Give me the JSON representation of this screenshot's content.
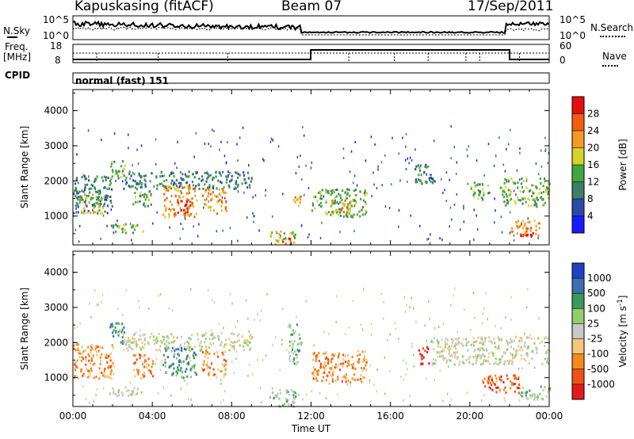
{
  "header": {
    "station": "Kapuskasing (fitACF)",
    "beam": "Beam 07",
    "date": "17/Sep/2011"
  },
  "nsky": {
    "label": "N.Sky",
    "tick_top": "10^5",
    "tick_bottom": "10^0",
    "right_label": "N.Search",
    "right_tick_top": "10^5",
    "right_tick_bottom": "10^0"
  },
  "freq": {
    "label_line1": "Freq.",
    "label_line2": "[MHz]",
    "tick_top": "18",
    "tick_bottom": "8",
    "right_label": "Nave",
    "right_tick_top": "60",
    "right_tick_bottom": "0"
  },
  "cpid": {
    "label": "CPID",
    "text": "normal (fast) 151"
  },
  "colors": {
    "power_scale": [
      "#1a1aff",
      "#2a4aa8",
      "#3c7e66",
      "#3fa83f",
      "#d6d22a",
      "#f59a22",
      "#f25d0e",
      "#e60f0f"
    ],
    "velocity_scale": [
      "#e61919",
      "#ee5018",
      "#f58a1c",
      "#f4c87a",
      "#c8c8c8",
      "#8fd06a",
      "#3b9a5a",
      "#3d6fb2",
      "#2040c8"
    ]
  },
  "chart_data": [
    {
      "type": "heatmap",
      "name": "power",
      "xlabel": "",
      "ylabel": "Slant Range [km]",
      "xlim": [
        0,
        24
      ],
      "ylim": [
        180,
        4600
      ],
      "yticks": [
        "1000",
        "2000",
        "3000",
        "4000"
      ],
      "colorbar_label": "Power [dB]",
      "colorbar_ticks": [
        "4",
        "8",
        "12",
        "16",
        "20",
        "24",
        "28"
      ],
      "regions": [
        {
          "t0": 0.0,
          "t1": 2.0,
          "r0": 1100,
          "r1": 2200,
          "level": 2
        },
        {
          "t0": 0.3,
          "t1": 1.5,
          "r0": 1100,
          "r1": 1700,
          "level": 4
        },
        {
          "t0": 1.8,
          "t1": 2.6,
          "r0": 2100,
          "r1": 2600,
          "level": 3
        },
        {
          "t0": 1.8,
          "t1": 3.5,
          "r0": 550,
          "r1": 800,
          "level": 3
        },
        {
          "t0": 2.5,
          "t1": 9.0,
          "r0": 1800,
          "r1": 2300,
          "level": 2
        },
        {
          "t0": 3.0,
          "t1": 4.0,
          "r0": 1300,
          "r1": 1800,
          "level": 3
        },
        {
          "t0": 4.5,
          "t1": 6.2,
          "r0": 1000,
          "r1": 1900,
          "level": 5
        },
        {
          "t0": 5.2,
          "t1": 5.9,
          "r0": 1100,
          "r1": 1500,
          "level": 7
        },
        {
          "t0": 6.5,
          "t1": 7.7,
          "r0": 1100,
          "r1": 1800,
          "level": 5
        },
        {
          "t0": 9.8,
          "t1": 11.2,
          "r0": 200,
          "r1": 600,
          "level": 4
        },
        {
          "t0": 10.5,
          "t1": 11.0,
          "r0": 200,
          "r1": 400,
          "level": 7
        },
        {
          "t0": 11.0,
          "t1": 11.6,
          "r0": 1300,
          "r1": 1600,
          "level": 5
        },
        {
          "t0": 12.0,
          "t1": 14.8,
          "r0": 1000,
          "r1": 1800,
          "level": 3
        },
        {
          "t0": 13.0,
          "t1": 14.0,
          "r0": 1100,
          "r1": 1500,
          "level": 5
        },
        {
          "t0": 17.2,
          "t1": 18.2,
          "r0": 1900,
          "r1": 2500,
          "level": 2
        },
        {
          "t0": 20.0,
          "t1": 21.0,
          "r0": 1500,
          "r1": 2000,
          "level": 3
        },
        {
          "t0": 21.5,
          "t1": 24.0,
          "r0": 1300,
          "r1": 2100,
          "level": 3
        },
        {
          "t0": 22.0,
          "t1": 23.5,
          "r0": 450,
          "r1": 900,
          "level": 5
        },
        {
          "t0": 22.5,
          "t1": 23.2,
          "r0": 450,
          "r1": 700,
          "level": 7
        }
      ]
    },
    {
      "type": "heatmap",
      "name": "velocity",
      "xlabel": "Time UT",
      "ylabel": "Slant Range [km]",
      "xlim": [
        0,
        24
      ],
      "ylim": [
        180,
        4600
      ],
      "yticks": [
        "1000",
        "2000",
        "3000",
        "4000"
      ],
      "xticks": [
        "00:00",
        "04:00",
        "08:00",
        "12:00",
        "16:00",
        "20:00",
        "00:00"
      ],
      "colorbar_label": "Velocity [m s^-1]",
      "colorbar_ticks": [
        "-1000",
        "-500",
        "-100",
        "-25",
        "25",
        "100",
        "500",
        "1000"
      ],
      "regions": [
        {
          "t0": 0.0,
          "t1": 2.0,
          "r0": 1000,
          "r1": 2000,
          "level": 2
        },
        {
          "t0": 1.8,
          "t1": 2.6,
          "r0": 2000,
          "r1": 2600,
          "level": 6
        },
        {
          "t0": 1.8,
          "t1": 3.5,
          "r0": 500,
          "r1": 800,
          "level": 4
        },
        {
          "t0": 2.5,
          "t1": 9.0,
          "r0": 1800,
          "r1": 2300,
          "level": 4
        },
        {
          "t0": 3.0,
          "t1": 4.0,
          "r0": 1000,
          "r1": 1700,
          "level": 2
        },
        {
          "t0": 4.5,
          "t1": 6.2,
          "r0": 1000,
          "r1": 1900,
          "level": 6
        },
        {
          "t0": 6.5,
          "t1": 7.7,
          "r0": 1100,
          "r1": 1800,
          "level": 2
        },
        {
          "t0": 9.8,
          "t1": 11.2,
          "r0": 200,
          "r1": 700,
          "level": 5
        },
        {
          "t0": 10.8,
          "t1": 11.5,
          "r0": 1400,
          "r1": 2600,
          "level": 5
        },
        {
          "t0": 12.0,
          "t1": 14.8,
          "r0": 900,
          "r1": 1800,
          "level": 2
        },
        {
          "t0": 17.4,
          "t1": 18.0,
          "r0": 1400,
          "r1": 1900,
          "level": 0
        },
        {
          "t0": 18.0,
          "t1": 24.0,
          "r0": 1400,
          "r1": 2200,
          "level": 4
        },
        {
          "t0": 20.5,
          "t1": 22.5,
          "r0": 600,
          "r1": 1100,
          "level": 1
        },
        {
          "t0": 22.5,
          "t1": 24.0,
          "r0": 400,
          "r1": 800,
          "level": 5
        }
      ]
    }
  ]
}
